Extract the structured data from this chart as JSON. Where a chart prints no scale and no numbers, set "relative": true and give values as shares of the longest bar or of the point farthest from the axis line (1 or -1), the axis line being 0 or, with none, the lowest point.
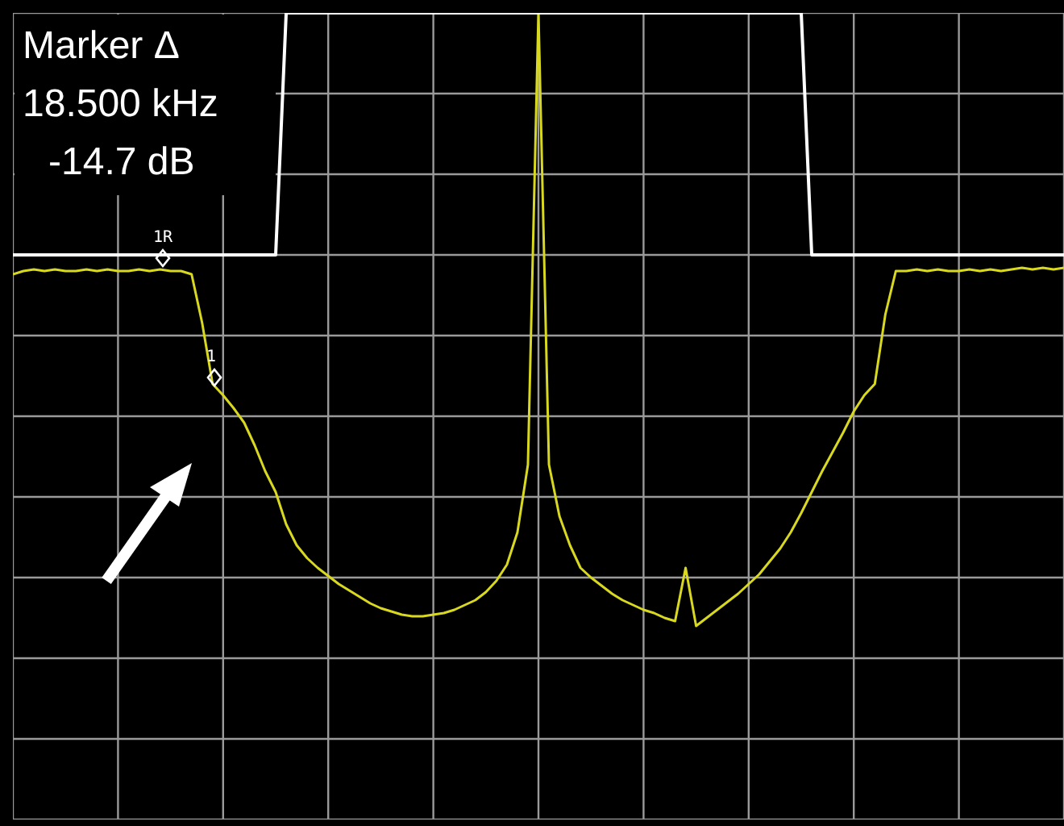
{
  "chart_data": {
    "type": "line",
    "relative": true,
    "grid": true,
    "tick_labels": false,
    "marker": "none",
    "categories": [
      null,
      null,
      null,
      null,
      null,
      null,
      null,
      null,
      null,
      null,
      null,
      null,
      null,
      null,
      null,
      null,
      null,
      null,
      null,
      null,
      null,
      null,
      null,
      null,
      null,
      null,
      null,
      null,
      null,
      null,
      null,
      null,
      null,
      null,
      null,
      null,
      null,
      null,
      null,
      null,
      null,
      null,
      null,
      null,
      null,
      null,
      null,
      null,
      null,
      null,
      null,
      null,
      null,
      null,
      null,
      null,
      null,
      null,
      null,
      null,
      null,
      null,
      null,
      null,
      null,
      null,
      null,
      null,
      null,
      null,
      null,
      null,
      null,
      null,
      null,
      null,
      null,
      null,
      null,
      null,
      null,
      null,
      null,
      null,
      null,
      null,
      null,
      null,
      null,
      null,
      null,
      null,
      null,
      null,
      null,
      null,
      null,
      null,
      null,
      null,
      null
    ],
    "series": [
      {
        "color": "#d8d820",
        "values": [
          0.676,
          0.68,
          0.682,
          0.68,
          0.682,
          0.68,
          0.68,
          0.682,
          0.68,
          0.682,
          0.68,
          0.68,
          0.682,
          0.68,
          0.682,
          0.68,
          0.68,
          0.676,
          0.616,
          0.54,
          0.526,
          0.51,
          0.492,
          0.464,
          0.432,
          0.406,
          0.366,
          0.34,
          0.324,
          0.312,
          0.302,
          0.292,
          0.284,
          0.276,
          0.268,
          0.262,
          0.258,
          0.254,
          0.252,
          0.252,
          0.254,
          0.256,
          0.26,
          0.266,
          0.272,
          0.282,
          0.296,
          0.316,
          0.356,
          0.44,
          1,
          0.44,
          0.376,
          0.34,
          0.312,
          0.3,
          0.29,
          0.28,
          0.272,
          0.266,
          0.26,
          0.256,
          0.25,
          0.246,
          0.312,
          0.24,
          0.25,
          0.26,
          0.27,
          0.28,
          0.292,
          0.304,
          0.32,
          0.336,
          0.356,
          0.38,
          0.406,
          0.432,
          0.456,
          0.48,
          0.506,
          0.526,
          0.54,
          0.626,
          0.68,
          0.68,
          0.682,
          0.68,
          0.682,
          0.68,
          0.68,
          0.682,
          0.68,
          0.682,
          0.68,
          0.682,
          0.684,
          0.682,
          0.684,
          0.682,
          0.684
        ]
      },
      {
        "color": "#ffffff",
        "values": [
          0.7,
          0.7,
          0.7,
          0.7,
          0.7,
          0.7,
          0.7,
          0.7,
          0.7,
          0.7,
          0.7,
          0.7,
          0.7,
          0.7,
          0.7,
          0.7,
          0.7,
          0.7,
          0.7,
          0.7,
          0.7,
          0.7,
          0.7,
          0.7,
          0.7,
          0.7,
          1,
          1,
          1,
          1,
          1,
          1,
          1,
          1,
          1,
          1,
          1,
          1,
          1,
          1,
          1,
          1,
          1,
          1,
          1,
          1,
          1,
          1,
          1,
          1,
          1,
          1,
          1,
          1,
          1,
          1,
          1,
          1,
          1,
          1,
          1,
          1,
          1,
          1,
          1,
          1,
          1,
          1,
          1,
          1,
          1,
          1,
          1,
          1,
          1,
          1,
          0.7,
          0.7,
          0.7,
          0.7,
          0.7,
          0.7,
          0.7,
          0.7,
          0.7,
          0.7,
          0.7,
          0.7,
          0.7,
          0.7,
          0.7,
          0.7,
          0.7,
          0.7,
          0.7,
          0.7,
          0.7,
          0.7,
          0.7,
          0.7,
          0.7
        ]
      }
    ],
    "annotations": [
      "Marker Δ",
      "18.500 kHz",
      "-14.7 dB",
      {
        "text": "1R",
        "y": 0.696
      },
      {
        "text": "1",
        "y": 0.548
      }
    ]
  }
}
